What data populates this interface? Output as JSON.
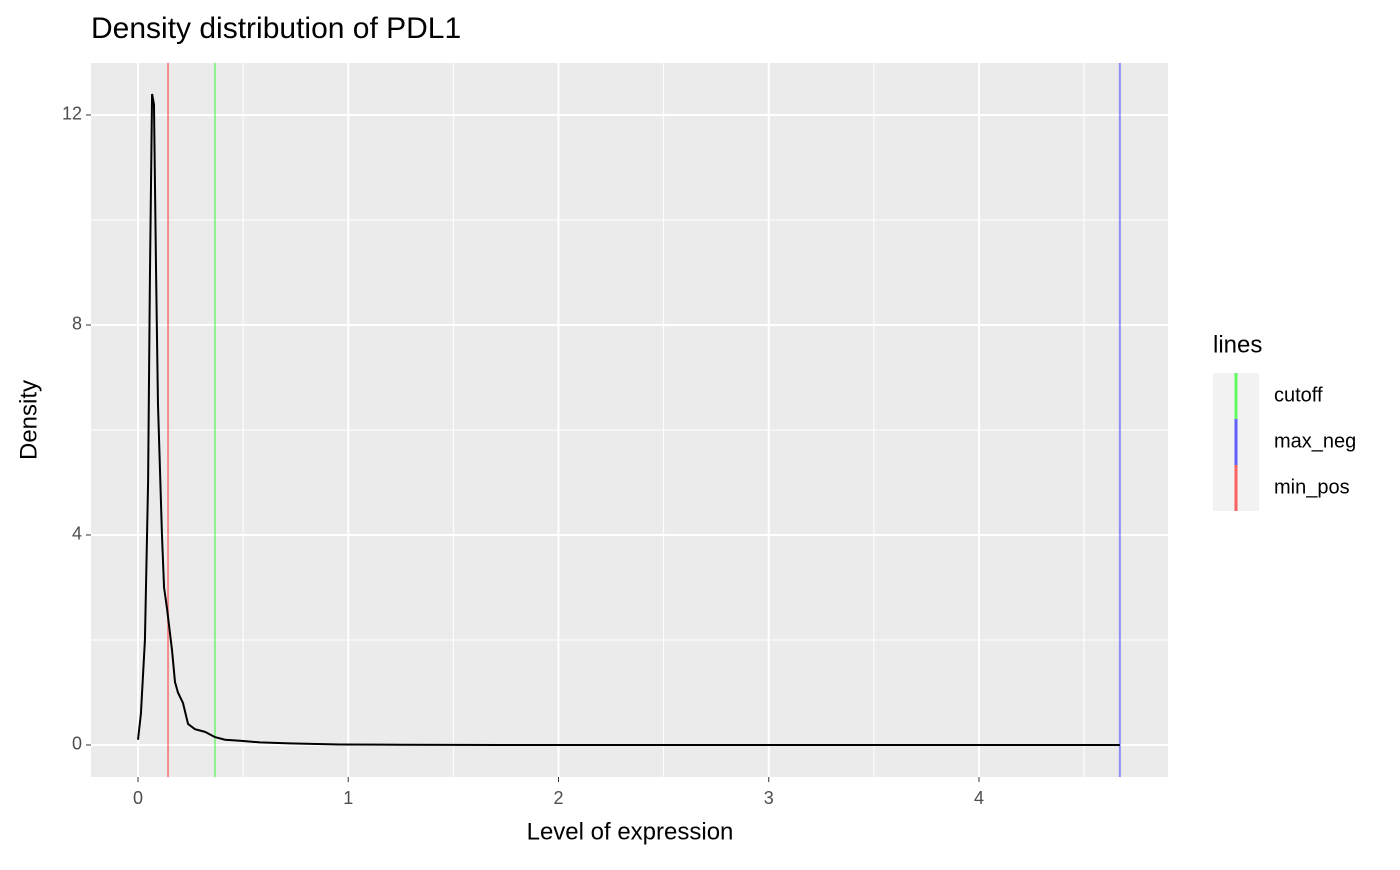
{
  "chart_data": {
    "type": "line",
    "title": "Density distribution of PDL1",
    "x_label": "Level of expression",
    "y_label": "Density",
    "series": [
      {
        "name": "density",
        "color": "#000000",
        "x": [
          0.0,
          0.014,
          0.033,
          0.048,
          0.057,
          0.067,
          0.076,
          0.086,
          0.095,
          0.114,
          0.124,
          0.138,
          0.162,
          0.176,
          0.19,
          0.214,
          0.238,
          0.271,
          0.319,
          0.366,
          0.414,
          0.485,
          0.58,
          0.72,
          0.96,
          1.25,
          1.72,
          2.5,
          3.5,
          4.67
        ],
        "values": [
          0.1,
          0.6,
          2.0,
          5.0,
          9.0,
          12.4,
          12.2,
          9.0,
          6.5,
          4.0,
          3.0,
          2.6,
          1.8,
          1.2,
          1.0,
          0.8,
          0.4,
          0.3,
          0.25,
          0.15,
          0.1,
          0.08,
          0.05,
          0.03,
          0.01,
          0.005,
          0,
          0,
          0,
          0
        ]
      }
    ],
    "vlines": [
      {
        "name": "cutoff",
        "color": "#00ff00",
        "value": 0.366
      },
      {
        "name": "max_neg",
        "color": "#0000ff",
        "value": 4.67
      },
      {
        "name": "min_pos",
        "color": "#ff0000",
        "value": 0.143
      }
    ],
    "legend_title": "lines",
    "legend_position": "right",
    "xlim": [
      -0.2235,
      4.899
    ],
    "xticks": [
      0,
      1,
      2,
      3,
      4
    ],
    "ylim": [
      -0.61,
      12.99
    ],
    "yticks": [
      0,
      4,
      8,
      12
    ],
    "grid": true
  }
}
